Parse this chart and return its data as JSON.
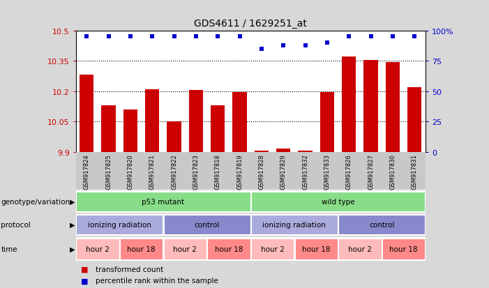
{
  "title": "GDS4611 / 1629251_at",
  "samples": [
    "GSM917824",
    "GSM917825",
    "GSM917820",
    "GSM917821",
    "GSM917822",
    "GSM917823",
    "GSM917818",
    "GSM917819",
    "GSM917828",
    "GSM917829",
    "GSM917832",
    "GSM917833",
    "GSM917826",
    "GSM917827",
    "GSM917830",
    "GSM917831"
  ],
  "bar_values": [
    10.28,
    10.13,
    10.11,
    10.21,
    10.05,
    10.205,
    10.13,
    10.195,
    9.905,
    9.915,
    9.905,
    10.195,
    10.37,
    10.355,
    10.345,
    10.22
  ],
  "percentile_values": [
    95,
    95,
    95,
    95,
    95,
    95,
    95,
    95,
    85,
    88,
    88,
    90,
    95,
    95,
    95,
    95
  ],
  "bar_color": "#cc0000",
  "dot_color": "#0000cc",
  "ylim_left": [
    9.9,
    10.5
  ],
  "ylim_right": [
    0,
    100
  ],
  "yticks_left": [
    9.9,
    10.05,
    10.2,
    10.35,
    10.5
  ],
  "ytick_labels_left": [
    "9.9",
    "10.05",
    "10.2",
    "10.35",
    "10.5"
  ],
  "yticks_right": [
    0,
    25,
    50,
    75,
    100
  ],
  "ytick_labels_right": [
    "0",
    "25",
    "50",
    "75",
    "100%"
  ],
  "grid_values": [
    10.05,
    10.2,
    10.35
  ],
  "fig_bg_color": "#d8d8d8",
  "plot_bg_color": "#ffffff",
  "sample_band_color": "#c8c8c8",
  "genotype_groups": [
    {
      "label": "p53 mutant",
      "start": 0,
      "end": 8,
      "color": "#88dd88"
    },
    {
      "label": "wild type",
      "start": 8,
      "end": 16,
      "color": "#88dd88"
    }
  ],
  "protocol_groups": [
    {
      "label": "ionizing radiation",
      "start": 0,
      "end": 4,
      "color": "#aaaadd"
    },
    {
      "label": "control",
      "start": 4,
      "end": 8,
      "color": "#8888cc"
    },
    {
      "label": "ionizing radiation",
      "start": 8,
      "end": 12,
      "color": "#aaaadd"
    },
    {
      "label": "control",
      "start": 12,
      "end": 16,
      "color": "#8888cc"
    }
  ],
  "time_groups": [
    {
      "label": "hour 2",
      "start": 0,
      "end": 2,
      "color": "#ffbbbb"
    },
    {
      "label": "hour 18",
      "start": 2,
      "end": 4,
      "color": "#ff8888"
    },
    {
      "label": "hour 2",
      "start": 4,
      "end": 6,
      "color": "#ffbbbb"
    },
    {
      "label": "hour 18",
      "start": 6,
      "end": 8,
      "color": "#ff8888"
    },
    {
      "label": "hour 2",
      "start": 8,
      "end": 10,
      "color": "#ffbbbb"
    },
    {
      "label": "hour 18",
      "start": 10,
      "end": 12,
      "color": "#ff8888"
    },
    {
      "label": "hour 2",
      "start": 12,
      "end": 14,
      "color": "#ffbbbb"
    },
    {
      "label": "hour 18",
      "start": 14,
      "end": 16,
      "color": "#ff8888"
    }
  ],
  "legend_items": [
    {
      "color": "#cc0000",
      "label": "transformed count"
    },
    {
      "color": "#0000cc",
      "label": "percentile rank within the sample"
    }
  ],
  "label_color_left": "#cc0000",
  "label_color_right": "#0000cc",
  "row_labels": [
    "genotype/variation",
    "protocol",
    "time"
  ],
  "bar_width": 0.65
}
